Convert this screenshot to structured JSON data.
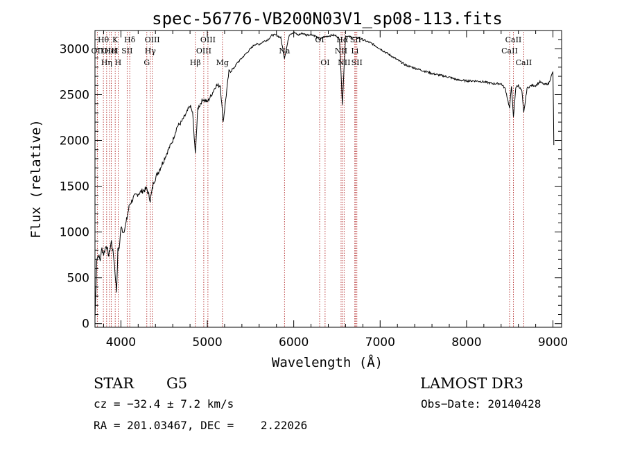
{
  "chart_data": {
    "type": "line",
    "title": "spec-56776-VB200N03V1_sp08-113.fits",
    "xlabel": "Wavelength (Å)",
    "ylabel": "Flux (relative)",
    "xlim": [
      3700,
      9100
    ],
    "ylim": [
      -40,
      3200
    ],
    "xticks": [
      "4000",
      "5000",
      "6000",
      "7000",
      "8000",
      "9000"
    ],
    "yticks": [
      "0",
      "500",
      "1000",
      "1500",
      "2000",
      "2500",
      "3000"
    ],
    "series": [
      {
        "name": "spectrum",
        "x": [
          3700,
          3720,
          3740,
          3760,
          3780,
          3800,
          3830,
          3860,
          3890,
          3920,
          3950,
          3965,
          3980,
          4000,
          4030,
          4060,
          4100,
          4150,
          4200,
          4250,
          4300,
          4340,
          4380,
          4430,
          4480,
          4550,
          4600,
          4650,
          4700,
          4760,
          4800,
          4830,
          4861,
          4890,
          4950,
          5000,
          5050,
          5100,
          5150,
          5183,
          5250,
          5300,
          5350,
          5400,
          5450,
          5500,
          5550,
          5600,
          5650,
          5700,
          5750,
          5800,
          5850,
          5893,
          5950,
          6000,
          6050,
          6100,
          6150,
          6200,
          6250,
          6300,
          6350,
          6400,
          6450,
          6500,
          6530,
          6563,
          6600,
          6650,
          6700,
          6750,
          6800,
          6900,
          7000,
          7100,
          7200,
          7300,
          7400,
          7500,
          7600,
          7700,
          7800,
          7900,
          8000,
          8100,
          8200,
          8300,
          8400,
          8450,
          8498,
          8520,
          8542,
          8570,
          8600,
          8640,
          8662,
          8700,
          8750,
          8800,
          8850,
          8900,
          8950,
          8980,
          9000,
          9010
        ],
        "values": [
          60,
          700,
          750,
          690,
          820,
          760,
          860,
          740,
          900,
          700,
          350,
          800,
          820,
          1050,
          1000,
          1100,
          1300,
          1380,
          1420,
          1450,
          1470,
          1350,
          1550,
          1650,
          1750,
          1900,
          2000,
          2150,
          2200,
          2300,
          2380,
          2300,
          1850,
          2350,
          2450,
          2420,
          2500,
          2600,
          2600,
          2200,
          2750,
          2780,
          2850,
          2900,
          2950,
          3000,
          3050,
          3050,
          3080,
          3100,
          3150,
          3150,
          3120,
          2900,
          3160,
          3180,
          3150,
          3170,
          3150,
          3160,
          3140,
          3100,
          3130,
          3140,
          3150,
          3140,
          3100,
          2400,
          3140,
          3130,
          3120,
          3120,
          3100,
          3060,
          3000,
          2940,
          2880,
          2820,
          2790,
          2760,
          2730,
          2710,
          2690,
          2660,
          2650,
          2650,
          2640,
          2620,
          2620,
          2560,
          2350,
          2600,
          2250,
          2580,
          2600,
          2540,
          2300,
          2570,
          2600,
          2600,
          2640,
          2610,
          2620,
          2700,
          2750,
          1950
        ]
      }
    ],
    "lines": [
      {
        "wl": 3727,
        "label": "OII",
        "row": 1
      },
      {
        "wl": 3797,
        "label": "Hθ",
        "row": 0
      },
      {
        "wl": 3835,
        "label": "Hη",
        "row": 2
      },
      {
        "wl": 3869,
        "label": "OIII",
        "row": 1
      },
      {
        "wl": 3889,
        "label": "HeI",
        "row": 1
      },
      {
        "wl": 3934,
        "label": "K",
        "row": 0
      },
      {
        "wl": 3968,
        "label": "H",
        "row": 2
      },
      {
        "wl": 4072,
        "label": "SII",
        "row": 1
      },
      {
        "wl": 4102,
        "label": "Hδ",
        "row": 0
      },
      {
        "wl": 4300,
        "label": "G",
        "row": 2
      },
      {
        "wl": 4340,
        "label": "Hγ",
        "row": 1
      },
      {
        "wl": 4363,
        "label": "OIII",
        "row": 0
      },
      {
        "wl": 4861,
        "label": "Hβ",
        "row": 2
      },
      {
        "wl": 4959,
        "label": "OIII",
        "row": 1
      },
      {
        "wl": 5007,
        "label": "OIII",
        "row": 0
      },
      {
        "wl": 5175,
        "label": "Mg",
        "row": 2
      },
      {
        "wl": 5893,
        "label": "Na",
        "row": 1
      },
      {
        "wl": 6300,
        "label": "OI",
        "row": 0
      },
      {
        "wl": 6363,
        "label": "OI",
        "row": 2
      },
      {
        "wl": 6548,
        "label": "NII",
        "row": 1
      },
      {
        "wl": 6563,
        "label": "Hα",
        "row": 0
      },
      {
        "wl": 6583,
        "label": "NII",
        "row": 2
      },
      {
        "wl": 6707,
        "label": "Li",
        "row": 1
      },
      {
        "wl": 6716,
        "label": "SII",
        "row": 0
      },
      {
        "wl": 6731,
        "label": "SII",
        "row": 2
      },
      {
        "wl": 8498,
        "label": "CaII",
        "row": 1
      },
      {
        "wl": 8542,
        "label": "CaII",
        "row": 0
      },
      {
        "wl": 8662,
        "label": "CaII",
        "row": 2
      }
    ]
  },
  "info": {
    "class": "STAR",
    "subclass": "G5",
    "survey": "LAMOST DR3",
    "cz": "cz = −32.4 ± 7.2 km/s",
    "obs_date": "Obs−Date: 20140428",
    "coords": "RA = 201.03467, DEC =    2.22026"
  }
}
